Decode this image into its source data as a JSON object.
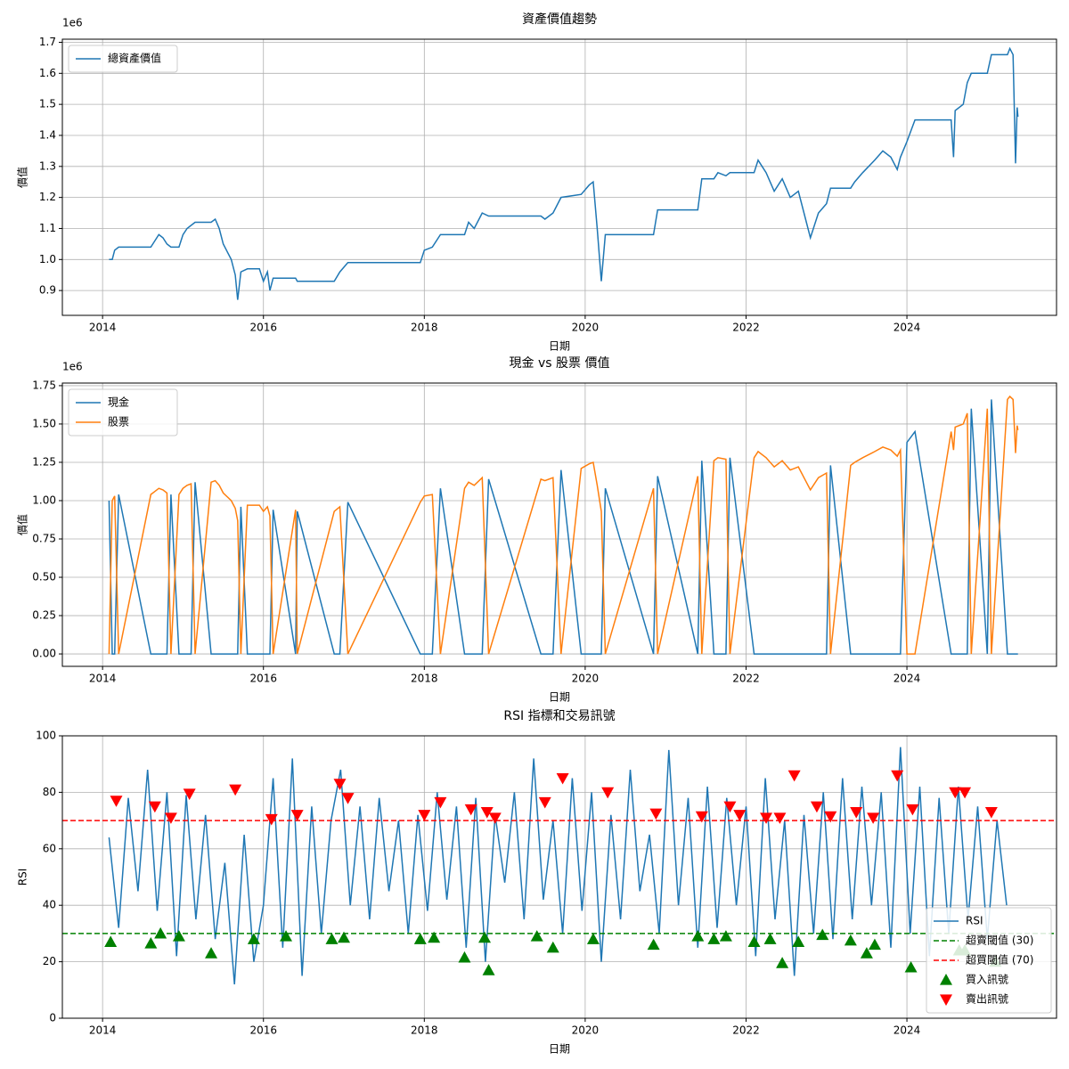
{
  "chart_data": [
    {
      "type": "line",
      "title": "資產價值趨勢",
      "xlabel": "日期",
      "ylabel": "價值",
      "y_offset_text": "1e6",
      "grid": true,
      "legend": "upper left",
      "xlim": [
        2013.5,
        2025.86
      ],
      "xticks": [
        2014,
        2016,
        2018,
        2020,
        2022,
        2024
      ],
      "ylim": [
        0.82,
        1.71
      ],
      "yticks": [
        0.9,
        {
          "value": 1,
          "label": "1.0"
        },
        1.1,
        1.2,
        1.3,
        1.4,
        1.5,
        1.6,
        1.7
      ],
      "x": [
        2014.08,
        2014.12,
        2014.15,
        2014.2,
        2014.6,
        2014.65,
        2014.7,
        2014.75,
        2014.8,
        2014.85,
        2014.95,
        2015.0,
        2015.05,
        2015.1,
        2015.15,
        2015.35,
        2015.4,
        2015.45,
        2015.5,
        2015.6,
        2015.65,
        2015.68,
        2015.72,
        2015.8,
        2015.95,
        2016.0,
        2016.05,
        2016.08,
        2016.12,
        2016.4,
        2016.42,
        2016.88,
        2016.95,
        2017.05,
        2017.95,
        2018.0,
        2018.1,
        2018.2,
        2018.5,
        2018.55,
        2018.62,
        2018.72,
        2018.8,
        2019.45,
        2019.5,
        2019.6,
        2019.7,
        2019.95,
        2020.05,
        2020.1,
        2020.15,
        2020.2,
        2020.25,
        2020.85,
        2020.9,
        2021.4,
        2021.45,
        2021.6,
        2021.65,
        2021.75,
        2021.8,
        2022.1,
        2022.15,
        2022.25,
        2022.35,
        2022.45,
        2022.55,
        2022.65,
        2022.75,
        2022.8,
        2022.9,
        2023.0,
        2023.05,
        2023.3,
        2023.35,
        2023.45,
        2023.6,
        2023.7,
        2023.8,
        2023.88,
        2023.92,
        2024.0,
        2024.1,
        2024.55,
        2024.58,
        2024.6,
        2024.7,
        2024.75,
        2024.8,
        2025.0,
        2025.05,
        2025.25,
        2025.28,
        2025.32,
        2025.33,
        2025.35,
        2025.37,
        2025.38
      ],
      "series": [
        {
          "name": "總資產價值",
          "color": "#1f77b4",
          "values": [
            1.0,
            1.0,
            1.03,
            1.04,
            1.04,
            1.06,
            1.08,
            1.07,
            1.05,
            1.04,
            1.04,
            1.08,
            1.1,
            1.11,
            1.12,
            1.12,
            1.13,
            1.1,
            1.05,
            1.0,
            0.95,
            0.87,
            0.96,
            0.97,
            0.97,
            0.93,
            0.96,
            0.9,
            0.94,
            0.94,
            0.93,
            0.93,
            0.96,
            0.99,
            0.99,
            1.03,
            1.04,
            1.08,
            1.08,
            1.12,
            1.1,
            1.15,
            1.14,
            1.14,
            1.13,
            1.15,
            1.2,
            1.21,
            1.24,
            1.25,
            1.1,
            0.93,
            1.08,
            1.08,
            1.16,
            1.16,
            1.26,
            1.26,
            1.28,
            1.27,
            1.28,
            1.28,
            1.32,
            1.28,
            1.22,
            1.26,
            1.2,
            1.22,
            1.12,
            1.07,
            1.15,
            1.18,
            1.23,
            1.23,
            1.25,
            1.28,
            1.32,
            1.35,
            1.33,
            1.29,
            1.33,
            1.38,
            1.45,
            1.45,
            1.33,
            1.48,
            1.5,
            1.57,
            1.6,
            1.6,
            1.66,
            1.66,
            1.68,
            1.66,
            1.55,
            1.31,
            1.49,
            1.46
          ]
        }
      ]
    },
    {
      "type": "line",
      "title": "現金 vs 股票 價值",
      "xlabel": "日期",
      "ylabel": "價值",
      "y_offset_text": "1e6",
      "grid": true,
      "legend": "upper left",
      "xlim": [
        2013.5,
        2025.86
      ],
      "xticks": [
        2014,
        2016,
        2018,
        2020,
        2022,
        2024
      ],
      "ylim": [
        -0.081,
        1.767
      ],
      "yticks": [
        {
          "value": 0,
          "label": "0.00"
        },
        0.25,
        {
          "value": 0.5,
          "label": "0.50"
        },
        0.75,
        {
          "value": 1,
          "label": "1.00"
        },
        1.25,
        {
          "value": 1.5,
          "label": "1.50"
        },
        1.75
      ],
      "x": [
        2014.08,
        2014.12,
        2014.15,
        2014.2,
        2014.6,
        2014.65,
        2014.7,
        2014.75,
        2014.8,
        2014.85,
        2014.95,
        2015.0,
        2015.05,
        2015.1,
        2015.15,
        2015.35,
        2015.4,
        2015.45,
        2015.5,
        2015.6,
        2015.65,
        2015.68,
        2015.72,
        2015.8,
        2015.95,
        2016.0,
        2016.05,
        2016.08,
        2016.12,
        2016.4,
        2016.42,
        2016.88,
        2016.95,
        2017.05,
        2017.95,
        2018.0,
        2018.1,
        2018.2,
        2018.5,
        2018.55,
        2018.62,
        2018.72,
        2018.8,
        2019.45,
        2019.5,
        2019.6,
        2019.7,
        2019.95,
        2020.05,
        2020.1,
        2020.15,
        2020.2,
        2020.25,
        2020.85,
        2020.9,
        2021.4,
        2021.45,
        2021.6,
        2021.65,
        2021.75,
        2021.8,
        2022.1,
        2022.15,
        2022.25,
        2022.35,
        2022.45,
        2022.55,
        2022.65,
        2022.75,
        2022.8,
        2022.9,
        2023.0,
        2023.05,
        2023.3,
        2023.35,
        2023.45,
        2023.6,
        2023.7,
        2023.8,
        2023.88,
        2023.92,
        2024.0,
        2024.1,
        2024.55,
        2024.58,
        2024.6,
        2024.7,
        2024.75,
        2024.8,
        2025.0,
        2025.05,
        2025.25,
        2025.28,
        2025.32,
        2025.33,
        2025.35,
        2025.37,
        2025.38
      ],
      "series": [
        {
          "name": "現金",
          "color": "#1f77b4",
          "values": [
            1.0,
            0,
            0,
            1.04,
            0,
            0,
            0,
            0,
            0,
            1.04,
            0,
            0,
            0,
            0,
            1.12,
            0,
            0,
            0,
            0,
            0,
            0,
            0,
            0.96,
            0,
            0,
            0,
            0,
            0,
            0.94,
            0,
            0.93,
            0,
            0,
            0.99,
            0,
            0,
            0,
            1.08,
            0,
            0,
            0,
            0,
            1.14,
            0,
            0,
            0,
            1.2,
            0,
            0,
            0,
            0,
            0,
            1.08,
            0,
            1.16,
            0,
            1.26,
            0,
            0,
            0,
            1.28,
            0,
            0,
            0,
            0,
            0,
            0,
            0,
            0,
            0,
            0,
            0,
            1.23,
            0,
            0,
            0,
            0,
            0,
            0,
            0,
            0,
            1.38,
            1.45,
            0,
            0,
            0,
            0,
            0,
            1.6,
            0,
            1.66,
            0,
            0,
            0,
            0,
            0,
            0,
            0
          ]
        },
        {
          "name": "股票",
          "color": "#ff7f0e",
          "values": [
            0,
            1.0,
            1.03,
            0,
            1.04,
            1.06,
            1.08,
            1.07,
            1.05,
            0,
            1.04,
            1.08,
            1.1,
            1.11,
            0,
            1.12,
            1.13,
            1.1,
            1.05,
            1.0,
            0.95,
            0.87,
            0,
            0.97,
            0.97,
            0.93,
            0.96,
            0.9,
            0,
            0.94,
            0,
            0.93,
            0.96,
            0,
            0.99,
            1.03,
            1.04,
            0,
            1.08,
            1.12,
            1.1,
            1.15,
            0,
            1.14,
            1.13,
            1.15,
            0,
            1.21,
            1.24,
            1.25,
            1.1,
            0.93,
            0,
            1.08,
            0,
            1.16,
            0,
            1.26,
            1.28,
            1.27,
            0,
            1.28,
            1.32,
            1.28,
            1.22,
            1.26,
            1.2,
            1.22,
            1.12,
            1.07,
            1.15,
            1.18,
            0,
            1.23,
            1.25,
            1.28,
            1.32,
            1.35,
            1.33,
            1.29,
            1.33,
            0,
            0,
            1.45,
            1.33,
            1.48,
            1.5,
            1.57,
            0,
            1.6,
            0,
            1.66,
            1.68,
            1.66,
            1.55,
            1.31,
            1.49,
            1.46
          ]
        }
      ]
    },
    {
      "type": "line",
      "title": "RSI 指標和交易訊號",
      "xlabel": "日期",
      "ylabel": "RSI",
      "grid": true,
      "legend": "lower right",
      "xlim": [
        2013.5,
        2025.86
      ],
      "xticks": [
        2014,
        2016,
        2018,
        2020,
        2022,
        2024
      ],
      "ylim": [
        0,
        100
      ],
      "yticks": [
        0,
        20,
        40,
        60,
        80,
        100
      ],
      "x": [
        2014.08,
        2014.2,
        2014.32,
        2014.44,
        2014.56,
        2014.68,
        2014.8,
        2014.92,
        2015.04,
        2015.16,
        2015.28,
        2015.4,
        2015.52,
        2015.64,
        2015.76,
        2015.88,
        2016,
        2016.12,
        2016.24,
        2016.36,
        2016.48,
        2016.6,
        2016.72,
        2016.84,
        2016.96,
        2017.08,
        2017.2,
        2017.32,
        2017.44,
        2017.56,
        2017.68,
        2017.8,
        2017.92,
        2018.04,
        2018.16,
        2018.28,
        2018.4,
        2018.52,
        2018.64,
        2018.76,
        2018.88,
        2019,
        2019.12,
        2019.24,
        2019.36,
        2019.48,
        2019.6,
        2019.72,
        2019.84,
        2019.96,
        2020.08,
        2020.2,
        2020.32,
        2020.44,
        2020.56,
        2020.68,
        2020.8,
        2020.92,
        2021.04,
        2021.16,
        2021.28,
        2021.4,
        2021.52,
        2021.64,
        2021.76,
        2021.88,
        2022,
        2022.12,
        2022.24,
        2022.36,
        2022.48,
        2022.6,
        2022.72,
        2022.84,
        2022.96,
        2023.08,
        2023.2,
        2023.32,
        2023.44,
        2023.56,
        2023.68,
        2023.8,
        2023.92,
        2024.04,
        2024.16,
        2024.28,
        2024.4,
        2024.52,
        2024.64,
        2024.76,
        2024.88,
        2025,
        2025.12,
        2025.24
      ],
      "series": [
        {
          "name": "RSI",
          "color": "#1f77b4",
          "values": [
            64,
            32,
            78,
            45,
            88,
            38,
            80,
            22,
            79,
            35,
            72,
            28,
            55,
            12,
            65,
            20,
            40,
            85,
            25,
            92,
            15,
            75,
            30,
            70,
            88,
            40,
            75,
            35,
            78,
            45,
            70,
            30,
            72,
            38,
            80,
            42,
            75,
            25,
            78,
            20,
            72,
            48,
            80,
            35,
            92,
            42,
            70,
            30,
            85,
            38,
            80,
            20,
            72,
            35,
            88,
            45,
            65,
            30,
            95,
            40,
            78,
            25,
            82,
            32,
            78,
            40,
            75,
            22,
            85,
            35,
            70,
            15,
            72,
            30,
            80,
            28,
            85,
            35,
            82,
            40,
            80,
            25,
            96,
            30,
            82,
            22,
            78,
            30,
            82,
            35,
            75,
            28,
            70,
            40
          ]
        }
      ],
      "thresholds": [
        {
          "name": "超賣閾值 (30)",
          "value": 30,
          "color": "#008000"
        },
        {
          "name": "超買閾值 (70)",
          "value": 70,
          "color": "#ff0000"
        }
      ],
      "signals": [
        {
          "name": "買入訊號",
          "color": "#008000",
          "marker": "^",
          "x": [
            2014.1,
            2014.6,
            2014.72,
            2014.95,
            2015.35,
            2015.88,
            2016.28,
            2016.85,
            2017.0,
            2017.95,
            2018.12,
            2018.5,
            2018.75,
            2018.8,
            2019.4,
            2019.6,
            2020.1,
            2020.85,
            2021.4,
            2021.6,
            2021.75,
            2022.1,
            2022.3,
            2022.45,
            2022.65,
            2022.95,
            2023.3,
            2023.5,
            2023.6,
            2024.05,
            2024.65,
            2024.72,
            2025.1
          ],
          "values": [
            27,
            26.5,
            30,
            29,
            23,
            28,
            29,
            28,
            28.5,
            28,
            28.5,
            21.5,
            28.5,
            17,
            29,
            25,
            28,
            26,
            29,
            28,
            29,
            27,
            28,
            19.5,
            27,
            29.5,
            27.5,
            23,
            26,
            18,
            24,
            24,
            20
          ]
        },
        {
          "name": "賣出訊號",
          "color": "#ff0000",
          "marker": "v",
          "x": [
            2014.17,
            2014.65,
            2014.85,
            2015.08,
            2015.65,
            2016.1,
            2016.42,
            2016.95,
            2017.05,
            2018.0,
            2018.2,
            2018.58,
            2018.78,
            2018.88,
            2019.5,
            2019.72,
            2020.28,
            2020.88,
            2021.45,
            2021.8,
            2021.92,
            2022.25,
            2022.42,
            2022.6,
            2022.88,
            2023.05,
            2023.37,
            2023.58,
            2023.88,
            2024.07,
            2024.6,
            2024.72,
            2025.05
          ],
          "values": [
            77,
            75,
            71,
            79.5,
            81,
            70.5,
            72,
            83,
            78,
            72,
            76.5,
            74,
            73,
            71,
            76.5,
            85,
            80,
            72.5,
            71.5,
            75,
            72,
            71,
            71,
            86,
            75,
            71.5,
            73,
            71,
            86,
            74,
            80,
            80,
            73
          ]
        }
      ]
    }
  ]
}
